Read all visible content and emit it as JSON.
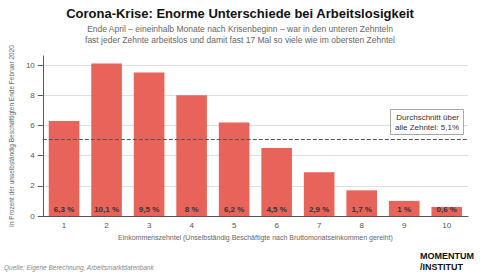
{
  "chart_data": {
    "type": "bar",
    "title": "Corona-Krise: Enorme Unterschiede bei Arbeitslosigkeit",
    "subtitle": "Ende April – eineinhalb Monate nach Krisenbeginn – war in den unteren Zehnteln\nfast jeder Zehnte arbeitslos und damit fast 17 Mal so viele wie im obersten Zehntel",
    "xlabel": "Einkommenszehntel (Unselbständig Beschäftigte nach Bruttomonatseinkommen gereiht)",
    "ylabel": "In Prozent der unselbständig Beschäftigten Ende Februar 2020",
    "source": "Quelle: Eigene Berechnung, Arbeitsmarktdatenbank",
    "logo": [
      "MOMENTUM",
      "/INSTITUT"
    ],
    "categories": [
      1,
      2,
      3,
      4,
      5,
      6,
      7,
      8,
      9,
      10
    ],
    "values": [
      6.3,
      10.1,
      9.5,
      8.0,
      6.2,
      4.5,
      2.9,
      1.7,
      1.0,
      0.6
    ],
    "value_labels": [
      "6,3 %",
      "10,1 %",
      "9,5 %",
      "8 %",
      "6,2 %",
      "4,5 %",
      "2,9 %",
      "1,7 %",
      "1 %",
      "0,6 %"
    ],
    "data_labels": true,
    "color": "#E8635A",
    "average": {
      "value": 5.1,
      "label": "Durchschnitt über\nalle Zehntel: 5,1%"
    },
    "ylim": [
      0,
      10.6
    ],
    "yticks": [
      0,
      2,
      4,
      6,
      8,
      10
    ],
    "grid": true
  }
}
